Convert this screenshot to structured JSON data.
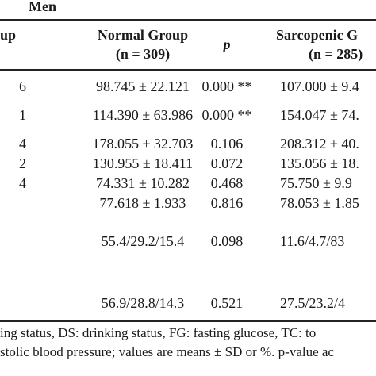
{
  "table": {
    "group_heading": "Men",
    "headers": {
      "left_fragment": "up",
      "normal_group": "Normal Group",
      "normal_n": "(n = 309)",
      "p": "p",
      "sarcopenic_group": "Sarcopenic G",
      "sarcopenic_n": "(n = 285)"
    },
    "rows": [
      {
        "left": "6",
        "normal": "98.745 ± 22.121",
        "p": "0.000 **",
        "sarcopenic": "107.000 ± 9.4"
      },
      {
        "left": "1",
        "normal": "114.390 ± 63.986",
        "p": "0.000 **",
        "sarcopenic": "154.047 ± 74."
      },
      {
        "left": "4",
        "normal": "178.055 ± 32.703",
        "p": "0.106",
        "sarcopenic": "208.312 ± 40."
      },
      {
        "left": "2",
        "normal": "130.955 ± 18.411",
        "p": "0.072",
        "sarcopenic": "135.056 ± 18."
      },
      {
        "left": "4",
        "normal": "74.331 ± 10.282",
        "p": "0.468",
        "sarcopenic": "75.750 ± 9.9"
      },
      {
        "left": "",
        "normal": "77.618 ± 1.933",
        "p": "0.816",
        "sarcopenic": "78.053 ± 1.85"
      },
      {
        "left": "",
        "normal": "55.4/29.2/15.4",
        "p": "0.098",
        "sarcopenic": "11.6/4.7/83"
      },
      {
        "left": "",
        "normal": "56.9/28.8/14.3",
        "p": "0.521",
        "sarcopenic": "27.5/23.2/4"
      }
    ],
    "footnote_line1": "ing status, DS: drinking status, FG: fasting glucose, TC: to",
    "footnote_line2": "stolic blood pressure; values are means ± SD or %. p-value ac"
  }
}
